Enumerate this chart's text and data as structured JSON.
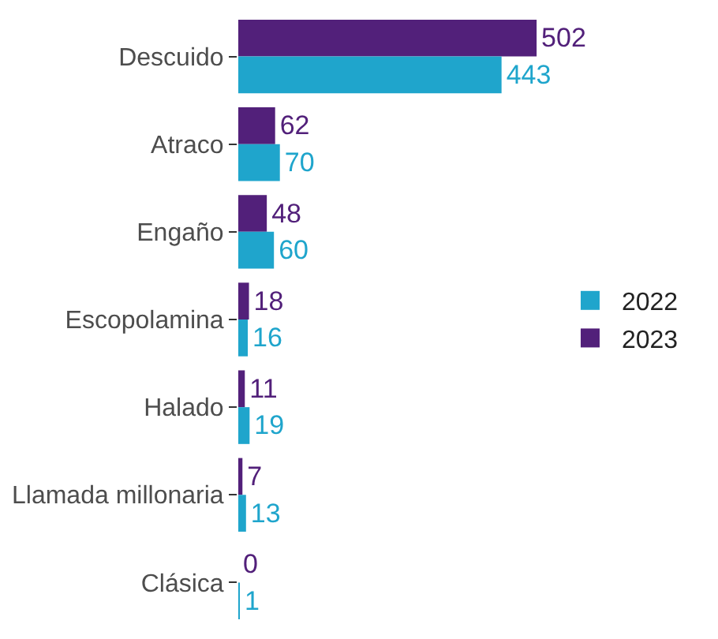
{
  "chart_data": {
    "type": "bar",
    "orientation": "horizontal",
    "categories": [
      "Descuido",
      "Atraco",
      "Engaño",
      "Escopolamina",
      "Halado",
      "Llamada millonaria",
      "Clásica"
    ],
    "series": [
      {
        "name": "2022",
        "color": "#1fa5cc",
        "values": [
          443,
          70,
          60,
          16,
          19,
          13,
          1
        ]
      },
      {
        "name": "2023",
        "color": "#52207a",
        "values": [
          502,
          62,
          48,
          18,
          11,
          7,
          0
        ]
      }
    ],
    "data_labels": true,
    "legend": "right",
    "tick_labels": "y"
  }
}
